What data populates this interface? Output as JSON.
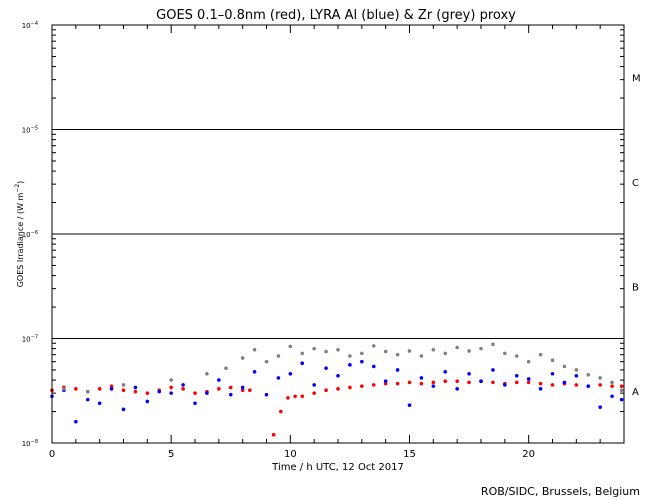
{
  "chart_data": {
    "type": "scatter",
    "title": "GOES 0.1–0.8nm (red), LYRA Al (blue) & Zr (grey) proxy",
    "xlabel": "Time / h UTC, 12 Oct 2017",
    "ylabel_main": "GOES Irradiance / (W m",
    "ylabel_sup": "−2",
    "ylabel_tail": ")",
    "footer": "ROB/SIDC, Brussels, Belgium",
    "xlim": [
      0,
      24
    ],
    "ylim_log10": [
      -8,
      -4
    ],
    "y_scale": "log",
    "x_ticks": [
      {
        "v": 0,
        "label": "0"
      },
      {
        "v": 5,
        "label": "5"
      },
      {
        "v": 10,
        "label": "10"
      },
      {
        "v": 15,
        "label": "15"
      },
      {
        "v": 20,
        "label": "20"
      }
    ],
    "y_ticks": [
      {
        "exp": -8,
        "base": "10",
        "sup": "−8"
      },
      {
        "exp": -7,
        "base": "10",
        "sup": "−7"
      },
      {
        "exp": -6,
        "base": "10",
        "sup": "−6"
      },
      {
        "exp": -5,
        "base": "10",
        "sup": "−5"
      },
      {
        "exp": -4,
        "base": "10",
        "sup": "−4"
      }
    ],
    "flare_class_lines_log10": [
      -7,
      -6,
      -5
    ],
    "flare_classes": [
      {
        "label": "A",
        "center_log10": -7.5
      },
      {
        "label": "B",
        "center_log10": -6.5
      },
      {
        "label": "C",
        "center_log10": -5.5
      },
      {
        "label": "M",
        "center_log10": -4.5
      }
    ],
    "series": [
      {
        "name": "GOES 0.1–0.8nm",
        "color": "#ff0000",
        "x": [
          0.0,
          0.5,
          1.0,
          1.5,
          2.0,
          2.5,
          3.0,
          3.5,
          4.0,
          4.5,
          5.0,
          5.5,
          6.0,
          6.5,
          7.0,
          7.5,
          8.0,
          8.3,
          9.3,
          9.6,
          9.9,
          10.2,
          10.5,
          11.0,
          11.5,
          12.0,
          12.5,
          13.0,
          13.5,
          14.0,
          14.5,
          15.0,
          15.5,
          16.0,
          16.5,
          17.0,
          17.5,
          18.0,
          18.5,
          19.0,
          19.5,
          20.0,
          20.5,
          21.0,
          21.5,
          22.0,
          22.5,
          23.0,
          23.5,
          23.9
        ],
        "y": [
          3.2e-08,
          3.4e-08,
          3.3e-08,
          3.1e-08,
          3.3e-08,
          3.5e-08,
          3.2e-08,
          3.1e-08,
          3e-08,
          3.2e-08,
          3.4e-08,
          3.3e-08,
          3e-08,
          3.1e-08,
          3.3e-08,
          3.4e-08,
          3.2e-08,
          3.2e-08,
          1.2e-08,
          2e-08,
          2.7e-08,
          2.8e-08,
          2.8e-08,
          3e-08,
          3.2e-08,
          3.3e-08,
          3.4e-08,
          3.5e-08,
          3.6e-08,
          3.7e-08,
          3.7e-08,
          3.8e-08,
          3.7e-08,
          3.8e-08,
          3.9e-08,
          3.9e-08,
          3.8e-08,
          3.9e-08,
          3.8e-08,
          3.7e-08,
          3.8e-08,
          3.8e-08,
          3.7e-08,
          3.6e-08,
          3.7e-08,
          3.6e-08,
          3.5e-08,
          3.6e-08,
          3.5e-08,
          3.5e-08
        ]
      },
      {
        "name": "LYRA Al",
        "color": "#0000ff",
        "x": [
          0.0,
          0.5,
          1.0,
          1.5,
          2.0,
          2.5,
          3.0,
          3.5,
          4.0,
          4.5,
          5.0,
          5.5,
          6.0,
          6.5,
          7.0,
          7.5,
          8.0,
          8.5,
          9.0,
          9.5,
          10.0,
          10.5,
          11.0,
          11.5,
          12.0,
          12.5,
          13.0,
          13.5,
          14.0,
          14.5,
          15.0,
          15.5,
          16.0,
          16.5,
          17.0,
          17.5,
          18.0,
          18.5,
          19.0,
          19.5,
          20.0,
          20.5,
          21.0,
          21.5,
          22.0,
          22.5,
          23.0,
          23.5,
          23.9
        ],
        "y": [
          2.8e-08,
          3.2e-08,
          1.6e-08,
          2.6e-08,
          2.4e-08,
          3.3e-08,
          2.1e-08,
          3.4e-08,
          2.5e-08,
          3.1e-08,
          3e-08,
          3.6e-08,
          2.4e-08,
          3e-08,
          4e-08,
          2.9e-08,
          3.4e-08,
          4.8e-08,
          2.9e-08,
          4.2e-08,
          4.6e-08,
          5.8e-08,
          3.6e-08,
          5.2e-08,
          4.4e-08,
          5.6e-08,
          6e-08,
          5.4e-08,
          3.9e-08,
          5e-08,
          2.3e-08,
          4.2e-08,
          3.5e-08,
          4.8e-08,
          3.3e-08,
          4.6e-08,
          3.9e-08,
          5e-08,
          3.6e-08,
          4.4e-08,
          4.1e-08,
          3.3e-08,
          4.6e-08,
          3.8e-08,
          4.4e-08,
          3.5e-08,
          2.2e-08,
          2.8e-08,
          2.6e-08
        ]
      },
      {
        "name": "LYRA Zr",
        "color": "#808080",
        "x": [
          0.5,
          1.5,
          3.0,
          5.0,
          6.5,
          7.3,
          8.0,
          8.5,
          9.0,
          9.5,
          10.0,
          10.5,
          11.0,
          11.5,
          12.0,
          12.5,
          13.0,
          13.5,
          14.0,
          14.5,
          15.0,
          15.5,
          16.0,
          16.5,
          17.0,
          17.5,
          18.0,
          18.5,
          19.0,
          19.5,
          20.0,
          20.5,
          21.0,
          21.5,
          22.0,
          22.5,
          23.0,
          23.5,
          23.9
        ],
        "y": [
          3.3e-08,
          3.1e-08,
          3.6e-08,
          4e-08,
          4.6e-08,
          5.2e-08,
          6.5e-08,
          7.8e-08,
          6e-08,
          6.8e-08,
          8.4e-08,
          7.2e-08,
          8e-08,
          7.5e-08,
          7.8e-08,
          6.8e-08,
          7.2e-08,
          8.5e-08,
          7.5e-08,
          7e-08,
          7.6e-08,
          6.8e-08,
          7.8e-08,
          7.2e-08,
          8.2e-08,
          7.6e-08,
          8e-08,
          8.8e-08,
          7.2e-08,
          6.8e-08,
          6e-08,
          7e-08,
          6.2e-08,
          5.4e-08,
          5e-08,
          4.5e-08,
          4.2e-08,
          3.8e-08,
          3.2e-08
        ]
      }
    ],
    "grid": false,
    "legend": "none"
  }
}
